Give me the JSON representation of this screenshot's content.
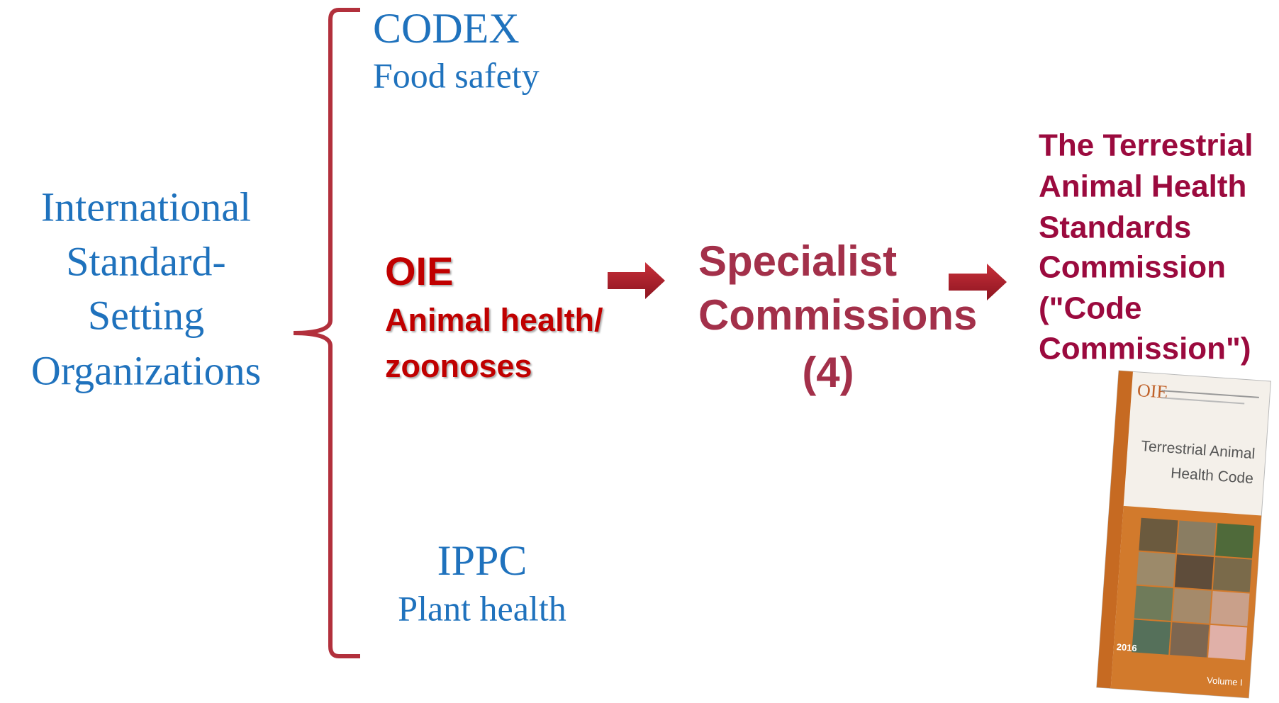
{
  "left_label": {
    "lines": [
      "International",
      "Standard-",
      "Setting",
      "Organizations"
    ]
  },
  "organizations": [
    {
      "name": "CODEX",
      "scope_lines": [
        "Food safety"
      ]
    },
    {
      "name": "OIE",
      "scope_lines": [
        "Animal health/",
        "zoonoses"
      ]
    },
    {
      "name": "IPPC",
      "scope_lines": [
        "Plant health"
      ]
    }
  ],
  "specialist": {
    "lines": [
      "Specialist",
      "Commissions",
      "(4)"
    ]
  },
  "code_commission": {
    "lines": [
      "The Terrestrial",
      "Animal Health",
      "Standards",
      "Commission",
      "(\"Code",
      "Commission\")"
    ]
  },
  "book": {
    "org": "OIE",
    "title_lines": [
      "Terrestrial Animal",
      "Health Code"
    ],
    "year": "2016",
    "volume": "Volume I"
  }
}
